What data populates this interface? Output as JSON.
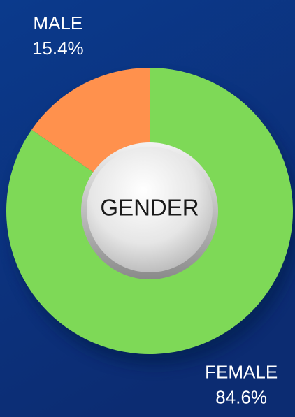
{
  "chart_data": {
    "type": "donut",
    "center_label": "GENDER",
    "categories": [
      "MALE",
      "FEMALE"
    ],
    "values": [
      15.4,
      84.6
    ],
    "value_labels": [
      "15.4%",
      "84.6%"
    ],
    "colors": [
      "#ff914d",
      "#7ed957"
    ]
  }
}
